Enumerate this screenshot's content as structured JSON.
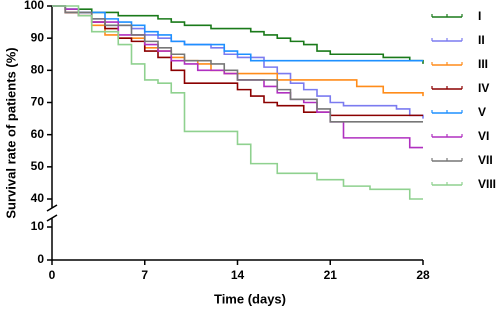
{
  "chart_data": {
    "type": "step",
    "x_label": "Time (days)",
    "y_label": "Survival rate of patients (%)",
    "xlim": [
      0,
      28
    ],
    "xticks": [
      0,
      7,
      14,
      21,
      28
    ],
    "ylim": [
      0,
      100
    ],
    "y_break": [
      10,
      40
    ],
    "yticks": [
      0,
      10,
      40,
      50,
      60,
      70,
      80,
      90,
      100
    ],
    "series": [
      {
        "name": "I",
        "color": "#1a7a1a",
        "x": [
          0,
          1,
          3,
          5,
          8,
          9,
          10,
          12,
          15,
          16,
          17,
          18,
          19,
          20,
          21,
          25,
          27,
          28
        ],
        "values": [
          100,
          99,
          98,
          97,
          96,
          95,
          94,
          93,
          92,
          91,
          90,
          89,
          88,
          86,
          85,
          84,
          83,
          82
        ]
      },
      {
        "name": "II",
        "color": "#7b7bf0",
        "x": [
          0,
          1,
          3,
          4,
          6,
          7,
          8,
          9,
          10,
          12,
          13,
          14,
          16,
          17,
          18,
          19,
          20,
          21,
          22,
          26,
          27,
          28
        ],
        "values": [
          100,
          98,
          96,
          94,
          93,
          91,
          90,
          89,
          88,
          87,
          85,
          84,
          81,
          79,
          76,
          74,
          72,
          70,
          69,
          68,
          66,
          65
        ]
      },
      {
        "name": "III",
        "color": "#ff8c1a",
        "x": [
          0,
          1,
          2,
          3,
          4,
          5,
          7,
          8,
          9,
          10,
          11,
          12,
          13,
          14,
          17,
          23,
          25,
          28
        ],
        "values": [
          100,
          98,
          97,
          94,
          91,
          90,
          87,
          86,
          84,
          83,
          82,
          80,
          79,
          79,
          77,
          75,
          73,
          72
        ]
      },
      {
        "name": "IV",
        "color": "#8b0000",
        "x": [
          0,
          1,
          3,
          4,
          5,
          6,
          7,
          8,
          9,
          10,
          14,
          15,
          16,
          17,
          19,
          21,
          28
        ],
        "values": [
          100,
          98,
          95,
          93,
          90,
          89,
          86,
          84,
          80,
          76,
          74,
          72,
          70,
          69,
          67,
          66,
          66
        ]
      },
      {
        "name": "V",
        "color": "#1e90ff",
        "x": [
          0,
          1,
          2,
          4,
          5,
          6,
          7,
          8,
          9,
          10,
          13,
          14,
          15,
          28
        ],
        "values": [
          100,
          99,
          98,
          96,
          95,
          94,
          92,
          91,
          89,
          88,
          86,
          85,
          83,
          83
        ]
      },
      {
        "name": "VI",
        "color": "#b030c0",
        "x": [
          0,
          1,
          2,
          3,
          5,
          7,
          8,
          9,
          10,
          11,
          13,
          14,
          16,
          17,
          18,
          19,
          20,
          21,
          22,
          27,
          28
        ],
        "values": [
          100,
          99,
          97,
          95,
          91,
          88,
          86,
          83,
          82,
          80,
          79,
          77,
          75,
          73,
          71,
          70,
          67,
          64,
          59,
          56,
          56
        ]
      },
      {
        "name": "VII",
        "color": "#777777",
        "x": [
          0,
          1,
          3,
          4,
          6,
          7,
          8,
          9,
          10,
          12,
          13,
          14,
          17,
          18,
          20,
          21,
          28
        ],
        "values": [
          100,
          98,
          96,
          94,
          91,
          89,
          87,
          85,
          83,
          82,
          80,
          77,
          74,
          71,
          68,
          64,
          64
        ]
      },
      {
        "name": "VIII",
        "color": "#8fd18f",
        "x": [
          0,
          2,
          3,
          5,
          6,
          7,
          8,
          9,
          10,
          14,
          15,
          17,
          20,
          22,
          24,
          27,
          28
        ],
        "values": [
          100,
          97,
          92,
          88,
          82,
          77,
          76,
          73,
          61,
          57,
          51,
          48,
          46,
          44,
          43,
          40,
          40
        ]
      }
    ]
  }
}
